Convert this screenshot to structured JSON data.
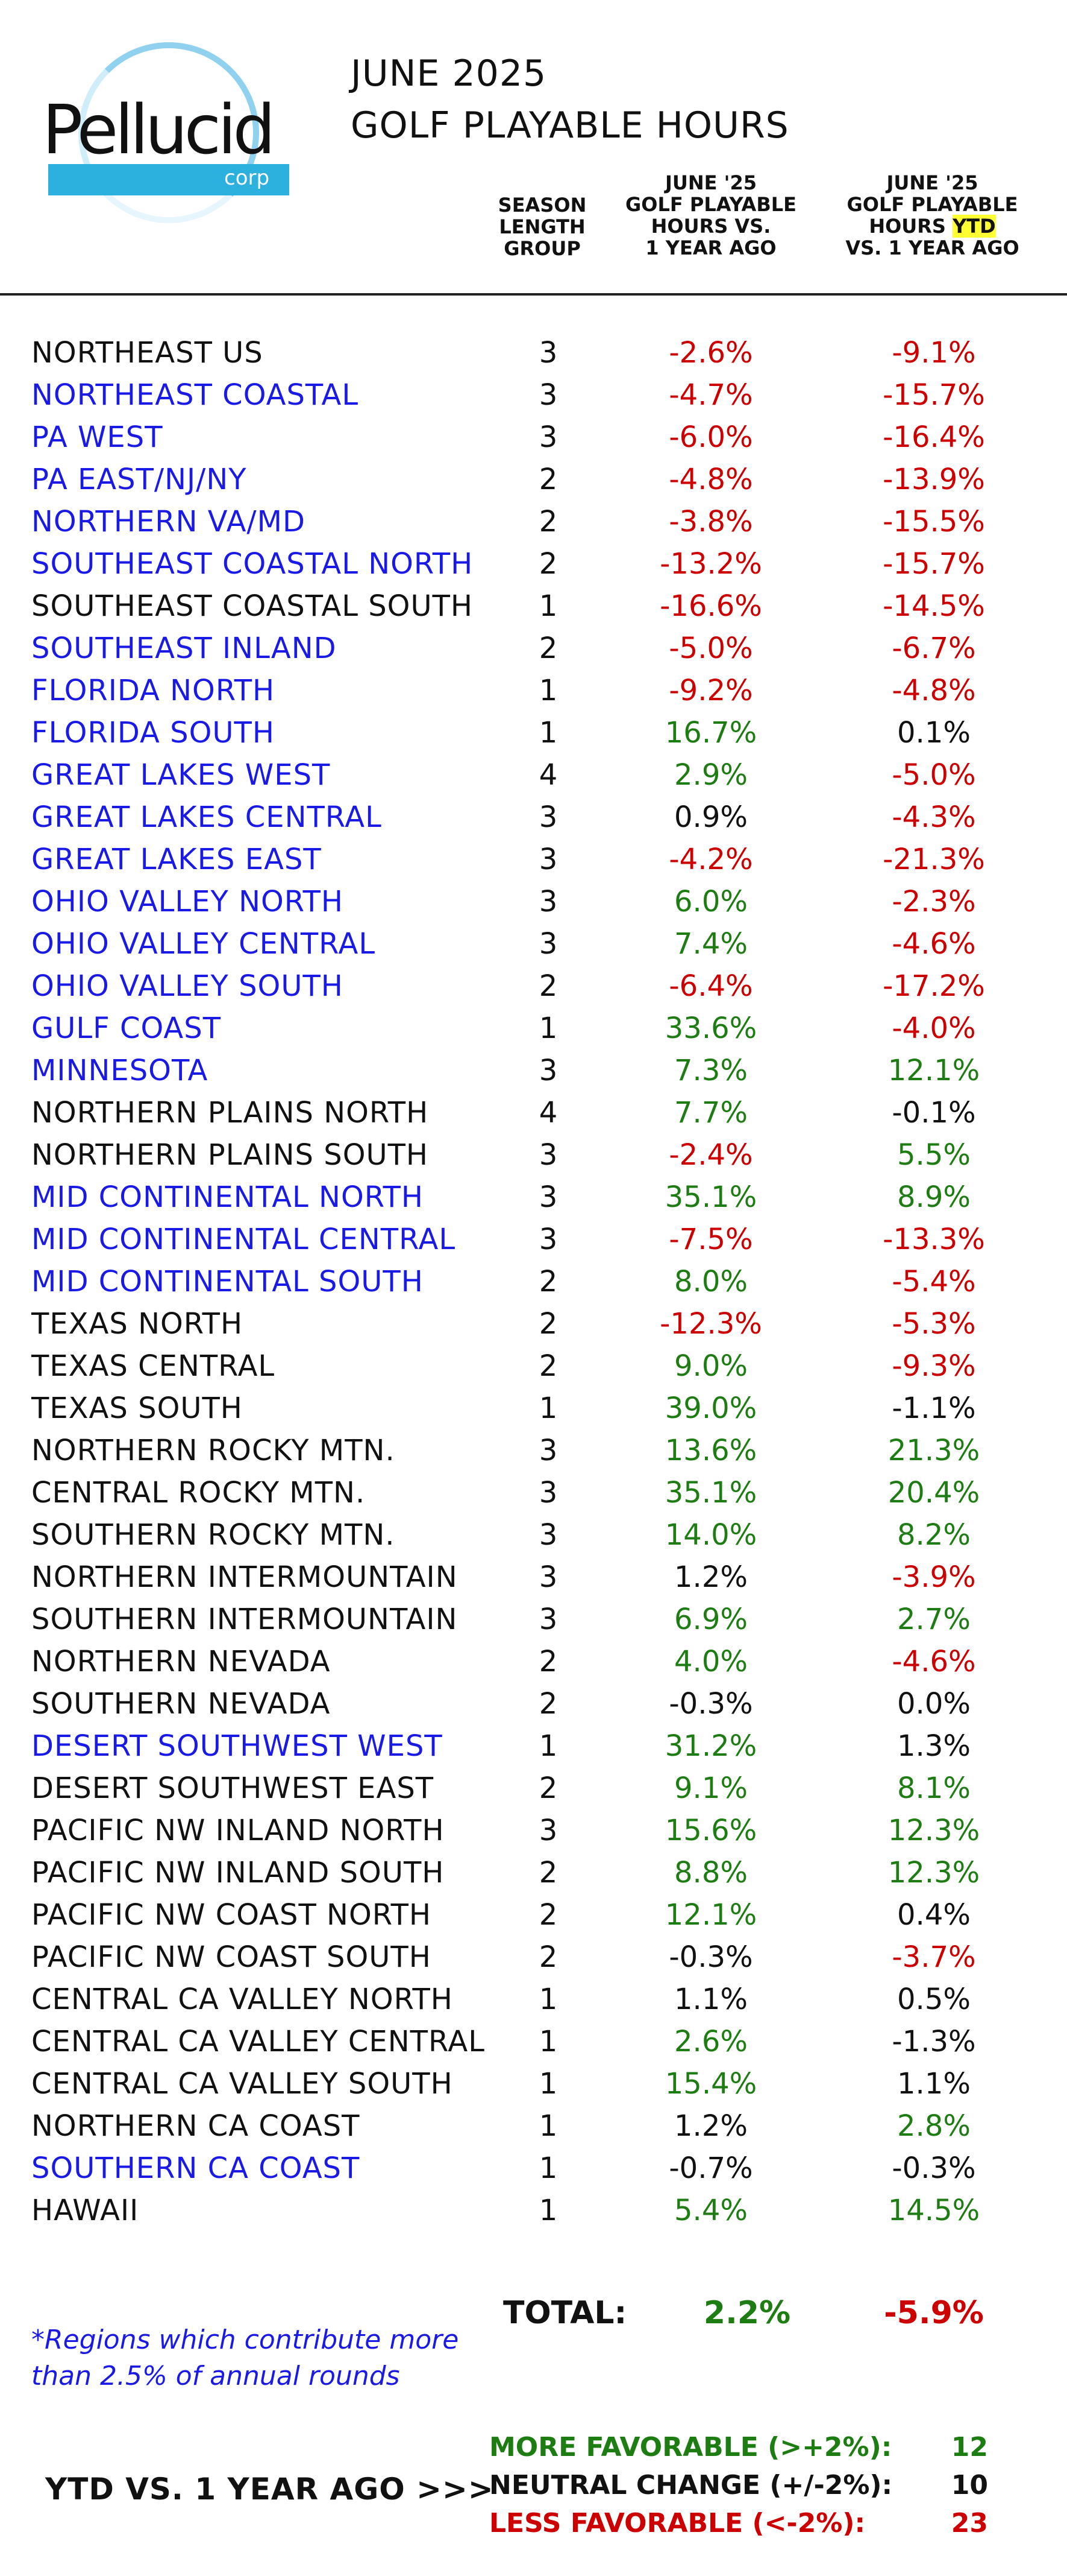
{
  "logo": {
    "name": "Pellucid",
    "sub": "corp"
  },
  "title": {
    "line1": "JUNE 2025",
    "line2": "GOLF PLAYABLE HOURS"
  },
  "headers": {
    "season": [
      "SEASON",
      "LENGTH",
      "GROUP"
    ],
    "june": [
      "JUNE '25",
      "GOLF PLAYABLE",
      "HOURS VS.",
      "1 YEAR AGO"
    ],
    "ytd_lines": [
      "JUNE '25",
      "GOLF PLAYABLE"
    ],
    "ytd_hours": "HOURS ",
    "ytd_tag": "YTD",
    "ytd_last": "VS. 1 YEAR AGO"
  },
  "rows": [
    {
      "region": "NORTHEAST  US",
      "group": "3",
      "june": "-2.6%",
      "ytd": "-9.1%",
      "rc": "black",
      "jc": "red",
      "yc": "red"
    },
    {
      "region": "NORTHEAST COASTAL",
      "group": "3",
      "june": "-4.7%",
      "ytd": "-15.7%",
      "rc": "blue",
      "jc": "red",
      "yc": "red"
    },
    {
      "region": "PA WEST",
      "group": "3",
      "june": "-6.0%",
      "ytd": "-16.4%",
      "rc": "blue",
      "jc": "red",
      "yc": "red"
    },
    {
      "region": "PA EAST/NJ/NY",
      "group": "2",
      "june": "-4.8%",
      "ytd": "-13.9%",
      "rc": "blue",
      "jc": "red",
      "yc": "red"
    },
    {
      "region": "NORTHERN VA/MD",
      "group": "2",
      "june": "-3.8%",
      "ytd": "-15.5%",
      "rc": "blue",
      "jc": "red",
      "yc": "red"
    },
    {
      "region": "SOUTHEAST COASTAL NORTH",
      "group": "2",
      "june": "-13.2%",
      "ytd": "-15.7%",
      "rc": "blue",
      "jc": "red",
      "yc": "red"
    },
    {
      "region": "SOUTHEAST COASTAL SOUTH",
      "group": "1",
      "june": "-16.6%",
      "ytd": "-14.5%",
      "rc": "black",
      "jc": "red",
      "yc": "red"
    },
    {
      "region": "SOUTHEAST INLAND",
      "group": "2",
      "june": "-5.0%",
      "ytd": "-6.7%",
      "rc": "blue",
      "jc": "red",
      "yc": "red"
    },
    {
      "region": "FLORIDA NORTH",
      "group": "1",
      "june": "-9.2%",
      "ytd": "-4.8%",
      "rc": "blue",
      "jc": "red",
      "yc": "red"
    },
    {
      "region": "FLORIDA SOUTH",
      "group": "1",
      "june": "16.7%",
      "ytd": "0.1%",
      "rc": "blue",
      "jc": "green",
      "yc": "black"
    },
    {
      "region": "GREAT LAKES WEST",
      "group": "4",
      "june": "2.9%",
      "ytd": "-5.0%",
      "rc": "blue",
      "jc": "green",
      "yc": "red"
    },
    {
      "region": "GREAT LAKES CENTRAL",
      "group": "3",
      "june": "0.9%",
      "ytd": "-4.3%",
      "rc": "blue",
      "jc": "black",
      "yc": "red"
    },
    {
      "region": "GREAT LAKES EAST",
      "group": "3",
      "june": "-4.2%",
      "ytd": "-21.3%",
      "rc": "blue",
      "jc": "red",
      "yc": "red"
    },
    {
      "region": "OHIO VALLEY NORTH",
      "group": "3",
      "june": "6.0%",
      "ytd": "-2.3%",
      "rc": "blue",
      "jc": "green",
      "yc": "red"
    },
    {
      "region": "OHIO VALLEY CENTRAL",
      "group": "3",
      "june": "7.4%",
      "ytd": "-4.6%",
      "rc": "blue",
      "jc": "green",
      "yc": "red"
    },
    {
      "region": "OHIO VALLEY SOUTH",
      "group": "2",
      "june": "-6.4%",
      "ytd": "-17.2%",
      "rc": "blue",
      "jc": "red",
      "yc": "red"
    },
    {
      "region": "GULF COAST",
      "group": "1",
      "june": "33.6%",
      "ytd": "-4.0%",
      "rc": "blue",
      "jc": "green",
      "yc": "red"
    },
    {
      "region": "MINNESOTA",
      "group": "3",
      "june": "7.3%",
      "ytd": "12.1%",
      "rc": "blue",
      "jc": "green",
      "yc": "green"
    },
    {
      "region": "NORTHERN PLAINS NORTH",
      "group": "4",
      "june": "7.7%",
      "ytd": "-0.1%",
      "rc": "black",
      "jc": "green",
      "yc": "black"
    },
    {
      "region": "NORTHERN PLAINS SOUTH",
      "group": "3",
      "june": "-2.4%",
      "ytd": "5.5%",
      "rc": "black",
      "jc": "red",
      "yc": "green"
    },
    {
      "region": "MID CONTINENTAL NORTH",
      "group": "3",
      "june": "35.1%",
      "ytd": "8.9%",
      "rc": "blue",
      "jc": "green",
      "yc": "green"
    },
    {
      "region": "MID CONTINENTAL CENTRAL",
      "group": "3",
      "june": "-7.5%",
      "ytd": "-13.3%",
      "rc": "blue",
      "jc": "red",
      "yc": "red"
    },
    {
      "region": "MID CONTINENTAL SOUTH",
      "group": "2",
      "june": "8.0%",
      "ytd": "-5.4%",
      "rc": "blue",
      "jc": "green",
      "yc": "red"
    },
    {
      "region": "TEXAS NORTH",
      "group": "2",
      "june": "-12.3%",
      "ytd": "-5.3%",
      "rc": "black",
      "jc": "red",
      "yc": "red"
    },
    {
      "region": "TEXAS CENTRAL",
      "group": "2",
      "june": "9.0%",
      "ytd": "-9.3%",
      "rc": "black",
      "jc": "green",
      "yc": "red"
    },
    {
      "region": "TEXAS SOUTH",
      "group": "1",
      "june": "39.0%",
      "ytd": "-1.1%",
      "rc": "black",
      "jc": "green",
      "yc": "black"
    },
    {
      "region": "NORTHERN ROCKY MTN.",
      "group": "3",
      "june": "13.6%",
      "ytd": "21.3%",
      "rc": "black",
      "jc": "green",
      "yc": "green"
    },
    {
      "region": "CENTRAL ROCKY MTN.",
      "group": "3",
      "june": "35.1%",
      "ytd": "20.4%",
      "rc": "black",
      "jc": "green",
      "yc": "green"
    },
    {
      "region": "SOUTHERN ROCKY MTN.",
      "group": "3",
      "june": "14.0%",
      "ytd": "8.2%",
      "rc": "black",
      "jc": "green",
      "yc": "green"
    },
    {
      "region": "NORTHERN INTERMOUNTAIN",
      "group": "3",
      "june": "1.2%",
      "ytd": "-3.9%",
      "rc": "black",
      "jc": "black",
      "yc": "red"
    },
    {
      "region": "SOUTHERN INTERMOUNTAIN",
      "group": "3",
      "june": "6.9%",
      "ytd": "2.7%",
      "rc": "black",
      "jc": "green",
      "yc": "green"
    },
    {
      "region": "NORTHERN NEVADA",
      "group": "2",
      "june": "4.0%",
      "ytd": "-4.6%",
      "rc": "black",
      "jc": "green",
      "yc": "red"
    },
    {
      "region": "SOUTHERN NEVADA",
      "group": "2",
      "june": "-0.3%",
      "ytd": "0.0%",
      "rc": "black",
      "jc": "black",
      "yc": "black"
    },
    {
      "region": "DESERT SOUTHWEST WEST",
      "group": "1",
      "june": "31.2%",
      "ytd": "1.3%",
      "rc": "blue",
      "jc": "green",
      "yc": "black"
    },
    {
      "region": "DESERT SOUTHWEST EAST",
      "group": "2",
      "june": "9.1%",
      "ytd": "8.1%",
      "rc": "black",
      "jc": "green",
      "yc": "green"
    },
    {
      "region": "PACIFIC NW INLAND NORTH",
      "group": "3",
      "june": "15.6%",
      "ytd": "12.3%",
      "rc": "black",
      "jc": "green",
      "yc": "green"
    },
    {
      "region": "PACIFIC NW INLAND SOUTH",
      "group": "2",
      "june": "8.8%",
      "ytd": "12.3%",
      "rc": "black",
      "jc": "green",
      "yc": "green"
    },
    {
      "region": "PACIFIC NW COAST NORTH",
      "group": "2",
      "june": "12.1%",
      "ytd": "0.4%",
      "rc": "black",
      "jc": "green",
      "yc": "black"
    },
    {
      "region": "PACIFIC NW COAST SOUTH",
      "group": "2",
      "june": "-0.3%",
      "ytd": "-3.7%",
      "rc": "black",
      "jc": "black",
      "yc": "red"
    },
    {
      "region": "CENTRAL CA VALLEY NORTH",
      "group": "1",
      "june": "1.1%",
      "ytd": "0.5%",
      "rc": "black",
      "jc": "black",
      "yc": "black"
    },
    {
      "region": "CENTRAL CA VALLEY CENTRAL",
      "group": "1",
      "june": "2.6%",
      "ytd": "-1.3%",
      "rc": "black",
      "jc": "green",
      "yc": "black"
    },
    {
      "region": "CENTRAL CA VALLEY SOUTH",
      "group": "1",
      "june": "15.4%",
      "ytd": "1.1%",
      "rc": "black",
      "jc": "green",
      "yc": "black"
    },
    {
      "region": "NORTHERN CA COAST",
      "group": "1",
      "june": "1.2%",
      "ytd": "2.8%",
      "rc": "black",
      "jc": "black",
      "yc": "green"
    },
    {
      "region": "SOUTHERN CA COAST",
      "group": "1",
      "june": "-0.7%",
      "ytd": "-0.3%",
      "rc": "blue",
      "jc": "black",
      "yc": "black"
    },
    {
      "region": "HAWAII",
      "group": "1",
      "june": "5.4%",
      "ytd": "14.5%",
      "rc": "black",
      "jc": "green",
      "yc": "green"
    }
  ],
  "total": {
    "label": "TOTAL:",
    "june": "2.2%",
    "ytd": "-5.9%"
  },
  "footnote": "*Regions which contribute more than 2.5% of annual rounds",
  "summary": {
    "label": "YTD VS. 1 YEAR AGO >>>",
    "more_label": "MORE FAVORABLE (>+2%):",
    "more_value": "12",
    "neutral_label": "NEUTRAL CHANGE (+/-2%):",
    "neutral_value": "10",
    "less_label": "LESS FAVORABLE (<-2%):",
    "less_value": "23"
  },
  "colors": {
    "blue": "#1a1ae6",
    "red": "#cc0000",
    "green": "#1e7d12",
    "black": "#111111",
    "highlight": "#ffff33"
  }
}
